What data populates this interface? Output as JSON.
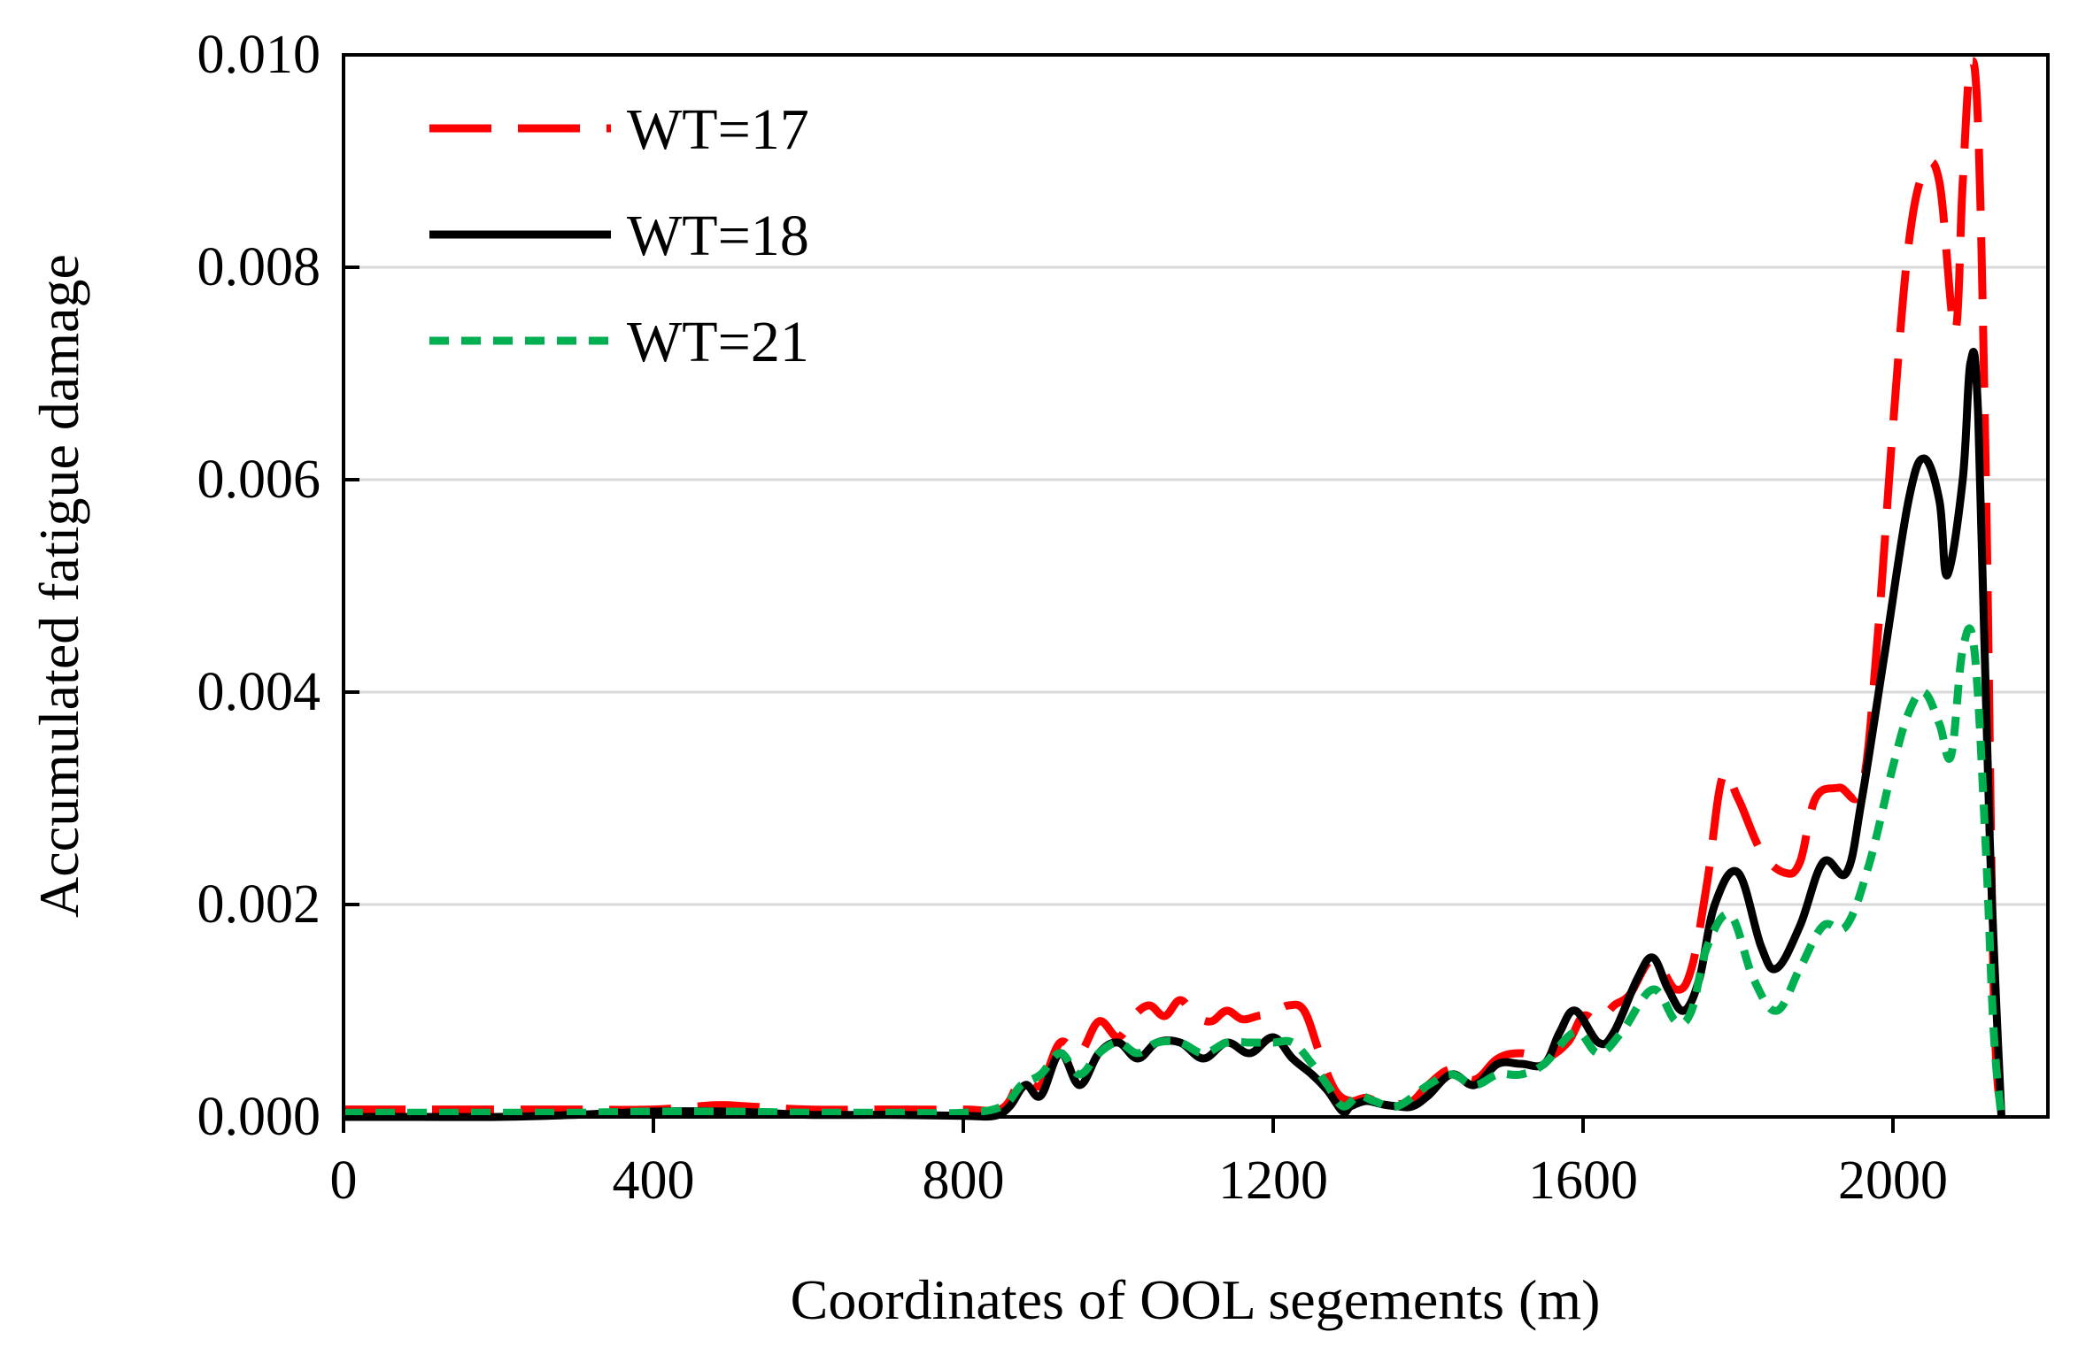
{
  "chart_data": {
    "type": "line",
    "title": "",
    "xlabel": "Coordinates of OOL segements (m)",
    "ylabel": "Accumulated fatigue damage",
    "xlim": [
      0,
      2200
    ],
    "ylim": [
      0,
      0.01
    ],
    "x_ticks": [
      "0",
      "400",
      "800",
      "1200",
      "1600",
      "2000"
    ],
    "x_tick_values": [
      0,
      400,
      800,
      1200,
      1600,
      2000
    ],
    "y_ticks": [
      "0.000",
      "0.002",
      "0.004",
      "0.006",
      "0.008",
      "0.010"
    ],
    "y_tick_values": [
      0,
      0.002,
      0.004,
      0.006,
      0.008,
      0.01
    ],
    "grid": "horizontal",
    "legend_position": "top-left",
    "series": [
      {
        "name": "WT=17",
        "color": "#ff0000",
        "style": "long-dash",
        "x": [
          0,
          100,
          200,
          300,
          400,
          480,
          520,
          600,
          700,
          800,
          850,
          875,
          900,
          925,
          950,
          975,
          1000,
          1020,
          1040,
          1060,
          1080,
          1100,
          1120,
          1140,
          1160,
          1180,
          1200,
          1220,
          1240,
          1260,
          1280,
          1300,
          1320,
          1340,
          1360,
          1380,
          1400,
          1430,
          1460,
          1490,
          1520,
          1550,
          1580,
          1600,
          1620,
          1640,
          1660,
          1690,
          1720,
          1740,
          1760,
          1780,
          1800,
          1830,
          1860,
          1880,
          1900,
          1930,
          1960,
          1980,
          2000,
          2020,
          2040,
          2060,
          2080,
          2090,
          2100,
          2110,
          2120,
          2130,
          2140
        ],
        "y": [
          7e-05,
          7e-05,
          7e-05,
          7e-05,
          7e-05,
          0.00011,
          0.0001,
          7e-05,
          7e-05,
          7e-05,
          8e-05,
          0.00035,
          0.0003,
          0.0007,
          0.0006,
          0.0009,
          0.00075,
          0.00095,
          0.00105,
          0.00095,
          0.0011,
          0.00095,
          0.0009,
          0.001,
          0.00092,
          0.00095,
          0.00098,
          0.00105,
          0.001,
          0.0006,
          0.00025,
          0.00015,
          0.00018,
          0.00012,
          0.00012,
          0.00015,
          0.0003,
          0.00045,
          0.00035,
          0.00055,
          0.0006,
          0.00055,
          0.0007,
          0.00095,
          0.0009,
          0.00105,
          0.00115,
          0.00148,
          0.0012,
          0.0014,
          0.0022,
          0.0032,
          0.003,
          0.0025,
          0.0023,
          0.0024,
          0.003,
          0.0031,
          0.0031,
          0.0045,
          0.0065,
          0.0082,
          0.0089,
          0.0088,
          0.0074,
          0.0088,
          0.0099,
          0.0093,
          0.006,
          0.0012,
          0.0
        ]
      },
      {
        "name": "WT=18",
        "color": "#000000",
        "style": "solid",
        "x": [
          0,
          100,
          200,
          300,
          400,
          500,
          600,
          700,
          800,
          840,
          860,
          880,
          900,
          925,
          950,
          975,
          1000,
          1025,
          1050,
          1080,
          1110,
          1140,
          1170,
          1200,
          1225,
          1250,
          1270,
          1290,
          1300,
          1320,
          1340,
          1360,
          1380,
          1400,
          1430,
          1460,
          1490,
          1520,
          1550,
          1570,
          1590,
          1620,
          1640,
          1670,
          1690,
          1710,
          1730,
          1750,
          1770,
          1800,
          1830,
          1850,
          1880,
          1910,
          1940,
          1960,
          1990,
          2020,
          2040,
          2060,
          2070,
          2090,
          2100,
          2110,
          2125,
          2140
        ],
        "y": [
          0.0,
          0.0,
          0.0,
          2e-05,
          5e-05,
          5e-05,
          2e-05,
          2e-05,
          1e-05,
          1e-05,
          0.0001,
          0.0003,
          0.0002,
          0.0006,
          0.0003,
          0.0006,
          0.0007,
          0.00055,
          0.0007,
          0.0007,
          0.00055,
          0.0007,
          0.0006,
          0.00075,
          0.00055,
          0.0004,
          0.00025,
          5e-05,
          0.0001,
          0.00015,
          0.00012,
          0.0001,
          0.0001,
          0.0002,
          0.0004,
          0.0003,
          0.0005,
          0.0005,
          0.0005,
          0.0008,
          0.001,
          0.0007,
          0.0008,
          0.0013,
          0.0015,
          0.0012,
          0.001,
          0.0013,
          0.002,
          0.0023,
          0.0016,
          0.0014,
          0.0018,
          0.0024,
          0.0023,
          0.003,
          0.0044,
          0.0058,
          0.0062,
          0.0058,
          0.0051,
          0.006,
          0.0071,
          0.0066,
          0.0026,
          0.0
        ]
      },
      {
        "name": "WT=21",
        "color": "#00b050",
        "style": "short-dash",
        "x": [
          0,
          100,
          200,
          300,
          400,
          500,
          600,
          700,
          800,
          850,
          875,
          900,
          925,
          950,
          975,
          1000,
          1025,
          1050,
          1080,
          1110,
          1140,
          1170,
          1200,
          1225,
          1250,
          1270,
          1290,
          1310,
          1330,
          1360,
          1400,
          1430,
          1460,
          1490,
          1520,
          1550,
          1590,
          1620,
          1650,
          1690,
          1720,
          1740,
          1760,
          1790,
          1820,
          1850,
          1880,
          1910,
          1940,
          1970,
          2000,
          2020,
          2040,
          2060,
          2075,
          2090,
          2105,
          2120,
          2130,
          2140
        ],
        "y": [
          4e-05,
          4e-05,
          4e-05,
          4e-05,
          5e-05,
          5e-05,
          4e-05,
          4e-05,
          4e-05,
          0.0001,
          0.0003,
          0.0004,
          0.0006,
          0.0004,
          0.0006,
          0.0007,
          0.0006,
          0.0007,
          0.0007,
          0.0006,
          0.0007,
          0.0007,
          0.0007,
          0.0007,
          0.0005,
          0.0003,
          0.0001,
          0.0002,
          0.00015,
          0.0001,
          0.0003,
          0.0004,
          0.0003,
          0.0004,
          0.0004,
          0.0005,
          0.0008,
          0.0006,
          0.0008,
          0.0012,
          0.0009,
          0.001,
          0.0016,
          0.0019,
          0.0013,
          0.001,
          0.0014,
          0.0018,
          0.0018,
          0.0024,
          0.0033,
          0.0038,
          0.004,
          0.0037,
          0.0034,
          0.0044,
          0.0044,
          0.0025,
          0.0008,
          0.0
        ]
      }
    ]
  }
}
